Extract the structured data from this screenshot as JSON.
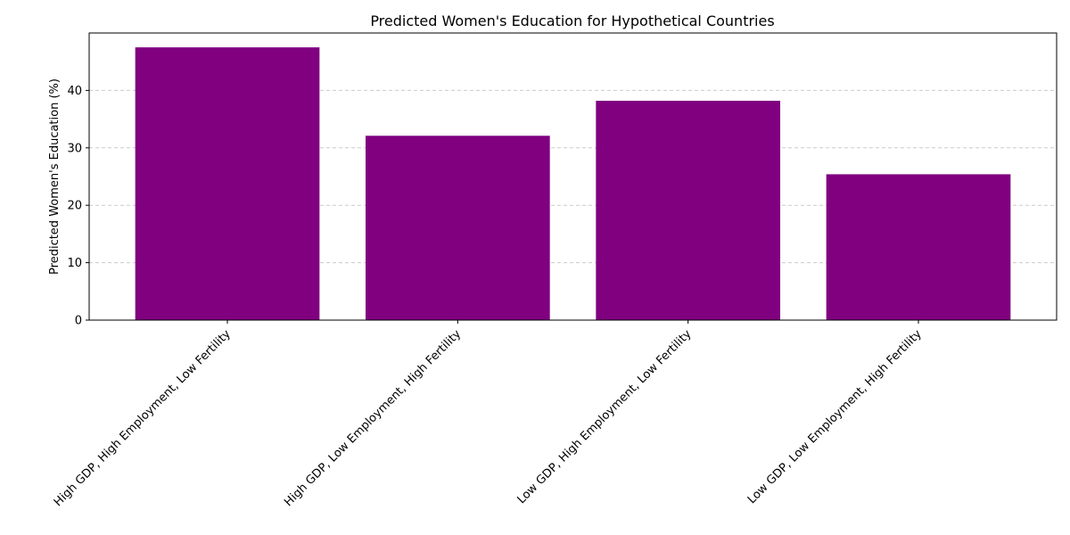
{
  "chart_data": {
    "type": "bar",
    "title": "Predicted Women's Education for Hypothetical Countries",
    "xlabel": "",
    "ylabel": "Predicted Women's Education (%)",
    "categories": [
      "High GDP, High Employment, Low Fertility",
      "High GDP, Low Employment, High Fertility",
      "Low GDP, High Employment, Low Fertility",
      "Low GDP, Low Employment, High Fertility"
    ],
    "values": [
      47.5,
      32.1,
      38.2,
      25.4
    ],
    "ylim": [
      0,
      50
    ],
    "yticks": [
      0,
      10,
      20,
      30,
      40
    ],
    "grid": "y-dashed",
    "legend": "none",
    "bar_color": "#800080"
  }
}
